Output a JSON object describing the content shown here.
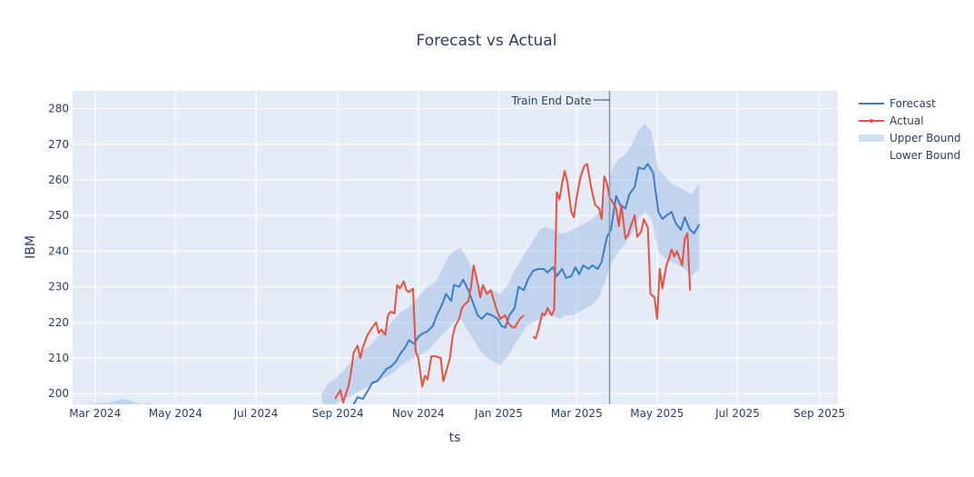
{
  "chart_data": {
    "type": "line",
    "title": "Forecast vs Actual",
    "xlabel": "ts",
    "ylabel": "IBM",
    "x_range": [
      "2024-02-13",
      "2025-09-15"
    ],
    "y_range": [
      197,
      285
    ],
    "x_ticks": [
      {
        "date": "2024-03-01",
        "label": "Mar 2024"
      },
      {
        "date": "2024-05-01",
        "label": "May 2024"
      },
      {
        "date": "2024-07-01",
        "label": "Jul 2024"
      },
      {
        "date": "2024-09-01",
        "label": "Sep 2024"
      },
      {
        "date": "2024-11-01",
        "label": "Nov 2024"
      },
      {
        "date": "2025-01-01",
        "label": "Jan 2025"
      },
      {
        "date": "2025-03-01",
        "label": "Mar 2025"
      },
      {
        "date": "2025-05-01",
        "label": "May 2025"
      },
      {
        "date": "2025-07-01",
        "label": "Jul 2025"
      },
      {
        "date": "2025-09-01",
        "label": "Sep 2025"
      }
    ],
    "y_ticks": [
      200,
      210,
      220,
      230,
      240,
      250,
      260,
      270,
      280
    ],
    "grid": true,
    "legend_position": "top-right",
    "annotation": {
      "date": "2025-03-26",
      "label": "Train End Date"
    },
    "series": [
      {
        "name": "Forecast",
        "color": "#3c7ec6",
        "points": [
          [
            "2024-09-13",
            197
          ],
          [
            "2024-09-16",
            199
          ],
          [
            "2024-09-20",
            198.5
          ],
          [
            "2024-09-24",
            201
          ],
          [
            "2024-09-27",
            203
          ],
          [
            "2024-10-01",
            203.5
          ],
          [
            "2024-10-04",
            205
          ],
          [
            "2024-10-08",
            207
          ],
          [
            "2024-10-11",
            207.5
          ],
          [
            "2024-10-15",
            209
          ],
          [
            "2024-10-18",
            211
          ],
          [
            "2024-10-22",
            213
          ],
          [
            "2024-10-25",
            215
          ],
          [
            "2024-10-29",
            214
          ],
          [
            "2024-11-01",
            216
          ],
          [
            "2024-11-05",
            217
          ],
          [
            "2024-11-08",
            217.5
          ],
          [
            "2024-11-12",
            219
          ],
          [
            "2024-11-15",
            222
          ],
          [
            "2024-11-19",
            225
          ],
          [
            "2024-11-22",
            228
          ],
          [
            "2024-11-26",
            226
          ],
          [
            "2024-11-28",
            230.5
          ],
          [
            "2024-12-02",
            230
          ],
          [
            "2024-12-05",
            232
          ],
          [
            "2024-12-09",
            229
          ],
          [
            "2024-12-12",
            226
          ],
          [
            "2024-12-16",
            222
          ],
          [
            "2024-12-19",
            221
          ],
          [
            "2024-12-23",
            222.5
          ],
          [
            "2024-12-27",
            222
          ],
          [
            "2024-12-31",
            221
          ],
          [
            "2025-01-03",
            219
          ],
          [
            "2025-01-06",
            218.5
          ],
          [
            "2025-01-09",
            222
          ],
          [
            "2025-01-13",
            224
          ],
          [
            "2025-01-16",
            230
          ],
          [
            "2025-01-20",
            229
          ],
          [
            "2025-01-23",
            232
          ],
          [
            "2025-01-27",
            234.5
          ],
          [
            "2025-01-31",
            235
          ],
          [
            "2025-02-04",
            235
          ],
          [
            "2025-02-07",
            234
          ],
          [
            "2025-02-11",
            235.5
          ],
          [
            "2025-02-14",
            233
          ],
          [
            "2025-02-18",
            235
          ],
          [
            "2025-02-21",
            232.5
          ],
          [
            "2025-02-25",
            233
          ],
          [
            "2025-02-28",
            235.5
          ],
          [
            "2025-03-03",
            233.5
          ],
          [
            "2025-03-06",
            236
          ],
          [
            "2025-03-10",
            235
          ],
          [
            "2025-03-13",
            236
          ],
          [
            "2025-03-17",
            235
          ],
          [
            "2025-03-20",
            237
          ],
          [
            "2025-03-24",
            244
          ],
          [
            "2025-03-27",
            246
          ],
          [
            "2025-03-31",
            255.5
          ],
          [
            "2025-04-03",
            253
          ],
          [
            "2025-04-07",
            252
          ],
          [
            "2025-04-10",
            256
          ],
          [
            "2025-04-14",
            258
          ],
          [
            "2025-04-17",
            263.5
          ],
          [
            "2025-04-21",
            263
          ],
          [
            "2025-04-24",
            264.5
          ],
          [
            "2025-04-28",
            262
          ],
          [
            "2025-05-02",
            251
          ],
          [
            "2025-05-05",
            249
          ],
          [
            "2025-05-08",
            250
          ],
          [
            "2025-05-12",
            251
          ],
          [
            "2025-05-15",
            248
          ],
          [
            "2025-05-19",
            246
          ],
          [
            "2025-05-22",
            249.5
          ],
          [
            "2025-05-26",
            246
          ],
          [
            "2025-05-29",
            245
          ],
          [
            "2025-06-02",
            247.5
          ]
        ]
      },
      {
        "name": "Actual",
        "color": "#e8513f",
        "points": [
          [
            "2024-08-30",
            198.5
          ],
          [
            "2024-09-03",
            201
          ],
          [
            "2024-09-05",
            197.5
          ],
          [
            "2024-09-09",
            202
          ],
          [
            "2024-09-11",
            206
          ],
          [
            "2024-09-13",
            211.5
          ],
          [
            "2024-09-16",
            213.5
          ],
          [
            "2024-09-18",
            210
          ],
          [
            "2024-09-20",
            213
          ],
          [
            "2024-09-23",
            216
          ],
          [
            "2024-09-26",
            218
          ],
          [
            "2024-09-30",
            220
          ],
          [
            "2024-10-02",
            217
          ],
          [
            "2024-10-04",
            218
          ],
          [
            "2024-10-07",
            216.5
          ],
          [
            "2024-10-09",
            222
          ],
          [
            "2024-10-11",
            223
          ],
          [
            "2024-10-14",
            222.5
          ],
          [
            "2024-10-16",
            230.5
          ],
          [
            "2024-10-18",
            229.5
          ],
          [
            "2024-10-21",
            231.5
          ],
          [
            "2024-10-23",
            229
          ],
          [
            "2024-10-25",
            228.5
          ],
          [
            "2024-10-28",
            229.5
          ],
          [
            "2024-10-30",
            212
          ],
          [
            "2024-11-01",
            210
          ],
          [
            "2024-11-04",
            202
          ],
          [
            "2024-11-06",
            205
          ],
          [
            "2024-11-08",
            204
          ],
          [
            "2024-11-11",
            210.5
          ],
          [
            "2024-11-14",
            210.5
          ],
          [
            "2024-11-18",
            210
          ],
          [
            "2024-11-20",
            203.5
          ],
          [
            "2024-11-22",
            206
          ],
          [
            "2024-11-25",
            210
          ],
          [
            "2024-11-27",
            216
          ],
          [
            "2024-11-29",
            219
          ],
          [
            "2024-12-02",
            221
          ],
          [
            "2024-12-04",
            224
          ],
          [
            "2024-12-06",
            225
          ],
          [
            "2024-12-09",
            226
          ],
          [
            "2024-12-11",
            230
          ],
          [
            "2024-12-13",
            236
          ],
          [
            "2024-12-16",
            231
          ],
          [
            "2024-12-18",
            227
          ],
          [
            "2024-12-20",
            230.5
          ],
          [
            "2024-12-23",
            228
          ],
          [
            "2024-12-26",
            229
          ],
          [
            "2024-12-30",
            224
          ],
          [
            "2025-01-02",
            221
          ],
          [
            "2025-01-06",
            222
          ],
          [
            "2025-01-08",
            220
          ],
          [
            "2025-01-10",
            219
          ],
          [
            "2025-01-13",
            218.5
          ],
          [
            "2025-01-17",
            221
          ],
          [
            "2025-01-20",
            222
          ],
          [
            "2025-01-27",
            216
          ],
          [
            "2025-01-29",
            215.5
          ],
          [
            "2025-01-31",
            218
          ],
          [
            "2025-02-03",
            222.5
          ],
          [
            "2025-02-05",
            222
          ],
          [
            "2025-02-07",
            224
          ],
          [
            "2025-02-10",
            222
          ],
          [
            "2025-02-12",
            223.5
          ],
          [
            "2025-02-14",
            256.5
          ],
          [
            "2025-02-16",
            254.5
          ],
          [
            "2025-02-18",
            259
          ],
          [
            "2025-02-20",
            262.5
          ],
          [
            "2025-02-22",
            259.5
          ],
          [
            "2025-02-25",
            251
          ],
          [
            "2025-02-27",
            249.5
          ],
          [
            "2025-03-01",
            255
          ],
          [
            "2025-03-04",
            261
          ],
          [
            "2025-03-07",
            264
          ],
          [
            "2025-03-09",
            264.5
          ],
          [
            "2025-03-12",
            258
          ],
          [
            "2025-03-15",
            253
          ],
          [
            "2025-03-18",
            252
          ],
          [
            "2025-03-20",
            249
          ],
          [
            "2025-03-22",
            261
          ],
          [
            "2025-03-24",
            259
          ],
          [
            "2025-03-26",
            255
          ],
          [
            "2025-03-28",
            254
          ],
          [
            "2025-03-31",
            252
          ],
          [
            "2025-04-02",
            247
          ],
          [
            "2025-04-04",
            253
          ],
          [
            "2025-04-07",
            243.5
          ],
          [
            "2025-04-09",
            244.5
          ],
          [
            "2025-04-11",
            247
          ],
          [
            "2025-04-14",
            250
          ],
          [
            "2025-04-16",
            244
          ],
          [
            "2025-04-19",
            245.5
          ],
          [
            "2025-04-21",
            249
          ],
          [
            "2025-04-24",
            246.5
          ],
          [
            "2025-04-26",
            228
          ],
          [
            "2025-04-29",
            227
          ],
          [
            "2025-05-01",
            221
          ],
          [
            "2025-05-03",
            235
          ],
          [
            "2025-05-05",
            229.5
          ],
          [
            "2025-05-08",
            236
          ],
          [
            "2025-05-10",
            238
          ],
          [
            "2025-05-12",
            240.5
          ],
          [
            "2025-05-14",
            238.5
          ],
          [
            "2025-05-16",
            240
          ],
          [
            "2025-05-20",
            236
          ],
          [
            "2025-05-22",
            243.5
          ],
          [
            "2025-05-24",
            245
          ],
          [
            "2025-05-26",
            229
          ]
        ]
      }
    ],
    "band": {
      "upper_name": "Upper Bound",
      "lower_name": "Lower Bound",
      "color": "rgba(125,165,220,0.35)",
      "points": [
        [
          "2024-02-22",
          196,
          197
        ],
        [
          "2024-03-12",
          196,
          197.5
        ],
        [
          "2024-03-22",
          196,
          198.5
        ],
        [
          "2024-03-28",
          196,
          198
        ],
        [
          "2024-04-05",
          196,
          197
        ],
        [
          "2024-04-12",
          196,
          197.5
        ],
        [
          "2024-08-20",
          196,
          200
        ],
        [
          "2024-08-25",
          196,
          203
        ],
        [
          "2024-08-30",
          197,
          204
        ],
        [
          "2024-09-04",
          198,
          206
        ],
        [
          "2024-09-09",
          199,
          208
        ],
        [
          "2024-09-14",
          200,
          210
        ],
        [
          "2024-09-19",
          201,
          212
        ],
        [
          "2024-09-24",
          202,
          213
        ],
        [
          "2024-09-29",
          203,
          215
        ],
        [
          "2024-10-04",
          204,
          217
        ],
        [
          "2024-10-09",
          205,
          219
        ],
        [
          "2024-10-14",
          206,
          221
        ],
        [
          "2024-10-19",
          208,
          223
        ],
        [
          "2024-10-24",
          209,
          224
        ],
        [
          "2024-10-29",
          210,
          226
        ],
        [
          "2024-11-03",
          211,
          228
        ],
        [
          "2024-11-08",
          212,
          230
        ],
        [
          "2024-11-13",
          214,
          231
        ],
        [
          "2024-11-18",
          216,
          234
        ],
        [
          "2024-11-23",
          218,
          238
        ],
        [
          "2024-11-28",
          220,
          240
        ],
        [
          "2024-12-03",
          221,
          241
        ],
        [
          "2024-12-08",
          218,
          238
        ],
        [
          "2024-12-13",
          215,
          234
        ],
        [
          "2024-12-18",
          212,
          230
        ],
        [
          "2024-12-23",
          210,
          229
        ],
        [
          "2024-12-28",
          209,
          229
        ],
        [
          "2025-01-02",
          208,
          228
        ],
        [
          "2025-01-07",
          210,
          230
        ],
        [
          "2025-01-12",
          213,
          234
        ],
        [
          "2025-01-17",
          216,
          237
        ],
        [
          "2025-01-22",
          219,
          240
        ],
        [
          "2025-01-27",
          220,
          243
        ],
        [
          "2025-02-01",
          221,
          246
        ],
        [
          "2025-02-06",
          222,
          247
        ],
        [
          "2025-02-11",
          222,
          246
        ],
        [
          "2025-02-16",
          221,
          245
        ],
        [
          "2025-02-21",
          222,
          245
        ],
        [
          "2025-02-26",
          222,
          246
        ],
        [
          "2025-03-03",
          223,
          247
        ],
        [
          "2025-03-08",
          224,
          248
        ],
        [
          "2025-03-13",
          225,
          249
        ],
        [
          "2025-03-18",
          227,
          251
        ],
        [
          "2025-03-23",
          232,
          256
        ],
        [
          "2025-03-28",
          237,
          263
        ],
        [
          "2025-04-02",
          240,
          266
        ],
        [
          "2025-04-07",
          242,
          267
        ],
        [
          "2025-04-12",
          245,
          270
        ],
        [
          "2025-04-17",
          249,
          274
        ],
        [
          "2025-04-22",
          251,
          276
        ],
        [
          "2025-04-27",
          249,
          273
        ],
        [
          "2025-05-02",
          240,
          263
        ],
        [
          "2025-05-07",
          238,
          261
        ],
        [
          "2025-05-12",
          237,
          259
        ],
        [
          "2025-05-17",
          236,
          258
        ],
        [
          "2025-05-22",
          235,
          257
        ],
        [
          "2025-05-27",
          233,
          256
        ],
        [
          "2025-06-02",
          235,
          259
        ]
      ]
    }
  }
}
